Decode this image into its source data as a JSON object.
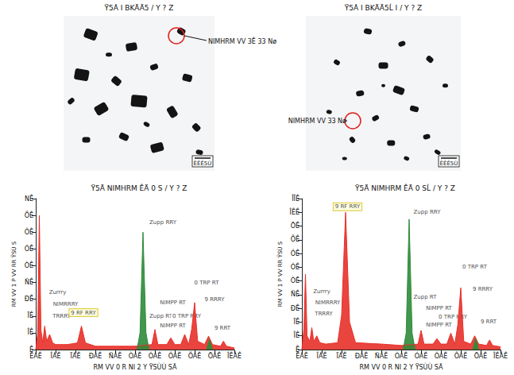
{
  "micrographs": [
    {
      "title": "Ÿ5Ã I BKÄÄ5 / Y ? Z",
      "annotation": "NIMHRM VV 3Ê 33 Nø",
      "scale_bar": "ÊÊÊ5Ù"
    },
    {
      "title": "Ÿ5Ã I BKÄÄ5Ĺ I / Y ? Z",
      "annotation": "NIMHRM VV 33 Nø",
      "scale_bar": "ÊÊÊ5Ù"
    }
  ],
  "chart_data": [
    {
      "type": "area",
      "title": "Ÿ5Ä NIMHRM ÊÄ 0 S / Y ? Z",
      "xlabel": "RM VV 0 R NI 2 Y ŸSÙÙ SÃ",
      "ylabel": "RM VV 1 P VV RR ŸSÙ S",
      "xlim": [
        0,
        10
      ],
      "xticks": [
        {
          "value": 0,
          "label": "ÊÁÊ"
        },
        {
          "value": 1,
          "label": "ÎÁÊ"
        },
        {
          "value": 2,
          "label": "ÏÁÊ"
        },
        {
          "value": 3,
          "label": "ÐÁÊ"
        },
        {
          "value": 4,
          "label": "ÑÁÊ"
        },
        {
          "value": 5,
          "label": "ÒÁÊ"
        },
        {
          "value": 6,
          "label": "ÓÁÊ"
        },
        {
          "value": 7,
          "label": "ÔÁÊ"
        },
        {
          "value": 8,
          "label": "ÕÁÊ"
        },
        {
          "value": 9,
          "label": "ÖÁÊ"
        },
        {
          "value": 10,
          "label": "ÎÊÁÊ"
        }
      ],
      "ylim": [
        0,
        90
      ],
      "yticks": [
        {
          "value": 0,
          "label": "Ê"
        },
        {
          "value": 10,
          "label": "ÎÊ"
        },
        {
          "value": 20,
          "label": "ÏÊ"
        },
        {
          "value": 30,
          "label": "ÐÊ"
        },
        {
          "value": 40,
          "label": "ÑÊ"
        },
        {
          "value": 50,
          "label": "ÒÊ"
        },
        {
          "value": 60,
          "label": "ÓÊ"
        },
        {
          "value": 70,
          "label": "ÔÊ"
        },
        {
          "value": 80,
          "label": "ÕÊ"
        },
        {
          "value": 90,
          "label": "NÊ"
        }
      ],
      "grid": false,
      "series": [
        {
          "color": "#e8302a",
          "x": [
            0,
            0.1,
            0.18,
            0.26,
            0.35,
            0.45,
            0.55,
            0.7,
            0.85,
            1.0,
            1.6,
            2.1,
            2.3,
            2.5,
            3.0,
            4.0,
            5.0,
            5.85,
            6.0,
            6.15,
            6.6,
            6.8,
            7.0,
            7.3,
            7.5,
            7.7,
            7.85,
            8.0,
            8.15,
            8.5,
            8.7,
            8.9,
            9.3,
            9.45,
            9.6,
            10
          ],
          "values": [
            0,
            10,
            80,
            12,
            4,
            14,
            5,
            9,
            4,
            3,
            3,
            4,
            14,
            4,
            2,
            2,
            2,
            3,
            12,
            3,
            3,
            7,
            3,
            3,
            9,
            3,
            12,
            28,
            5,
            3,
            8,
            3,
            2,
            5,
            2,
            1
          ]
        },
        {
          "color": "#2e8b3a",
          "x": [
            5.1,
            5.25,
            5.4,
            5.55,
            5.7,
            6.0,
            8.6,
            8.75,
            8.9
          ],
          "values": [
            0,
            10,
            70,
            10,
            0,
            null,
            0,
            6,
            0
          ]
        }
      ],
      "annotations": [
        {
          "text": "Zupp RRY",
          "x": 6.4,
          "y": 76
        },
        {
          "text": "Zurrry",
          "x": 1.1,
          "y": 34
        },
        {
          "text": "NIMRRRY",
          "x": 1.5,
          "y": 27
        },
        {
          "text": "TRRRY",
          "x": 1.3,
          "y": 20
        },
        {
          "text": "9 RF RRY",
          "x": 2.4,
          "y": 22,
          "marker": "box"
        },
        {
          "text": "Zupp RT",
          "x": 6.3,
          "y": 20
        },
        {
          "text": "NIMPP RT",
          "x": 6.9,
          "y": 28
        },
        {
          "text": "NIMPP RT",
          "x": 6.9,
          "y": 14
        },
        {
          "text": "0 TRP RT",
          "x": 8.6,
          "y": 40
        },
        {
          "text": "0 TRP RRY",
          "x": 7.6,
          "y": 20
        },
        {
          "text": "9 RRRY",
          "x": 9.0,
          "y": 30
        },
        {
          "text": "9 RRT",
          "x": 9.4,
          "y": 13
        }
      ]
    },
    {
      "type": "area",
      "title": "Ÿ5Ä NIMHRM ÊÄ 0 SĹ / Y ? Z",
      "xlabel": "RM VV 0 R NI 2 Y ŸSÙÙ SÃ",
      "ylabel": "RM VV 1 P VV RR ŸSÙ S",
      "xlim": [
        0,
        10
      ],
      "xticks": [
        {
          "value": 0,
          "label": "ÊÁÊ"
        },
        {
          "value": 1,
          "label": "ÎÁÊ"
        },
        {
          "value": 2,
          "label": "ÏÁÊ"
        },
        {
          "value": 3,
          "label": "ÐÁÊ"
        },
        {
          "value": 4,
          "label": "ÑÁÊ"
        },
        {
          "value": 5,
          "label": "ÒÁÊ"
        },
        {
          "value": 6,
          "label": "ÓÁÊ"
        },
        {
          "value": 7,
          "label": "ÔÁÊ"
        },
        {
          "value": 8,
          "label": "ÕÁÊ"
        },
        {
          "value": 9,
          "label": "ÖÁÊ"
        },
        {
          "value": 10,
          "label": "ÎÊÁÊ"
        }
      ],
      "ylim": [
        0,
        110
      ],
      "yticks": [
        {
          "value": 0,
          "label": "Ê"
        },
        {
          "value": 10,
          "label": "ÎÊ"
        },
        {
          "value": 20,
          "label": "ÏÊ"
        },
        {
          "value": 30,
          "label": "ÐÊ"
        },
        {
          "value": 40,
          "label": "ÑÊ"
        },
        {
          "value": 50,
          "label": "ÒÊ"
        },
        {
          "value": 60,
          "label": "ÓÊ"
        },
        {
          "value": 70,
          "label": "ÔÊ"
        },
        {
          "value": 80,
          "label": "ÕÊ"
        },
        {
          "value": 90,
          "label": "ÖÊ"
        },
        {
          "value": 100,
          "label": "ÎÊÊ"
        },
        {
          "value": 110,
          "label": "ÎÎÊ"
        }
      ],
      "grid": false,
      "series": [
        {
          "color": "#e8302a",
          "x": [
            0,
            0.1,
            0.18,
            0.26,
            0.4,
            0.5,
            0.6,
            0.75,
            0.9,
            1.2,
            1.8,
            2.0,
            2.2,
            2.4,
            2.7,
            4.0,
            5.0,
            5.85,
            6.0,
            6.15,
            6.6,
            6.8,
            7.0,
            7.3,
            7.5,
            7.7,
            7.85,
            8.0,
            8.15,
            8.5,
            8.7,
            8.9,
            9.3,
            9.45,
            9.6,
            10
          ],
          "values": [
            0,
            15,
            55,
            10,
            6,
            16,
            6,
            10,
            5,
            4,
            5,
            25,
            100,
            20,
            5,
            4,
            3,
            4,
            14,
            4,
            4,
            8,
            4,
            4,
            12,
            4,
            18,
            45,
            6,
            4,
            10,
            4,
            3,
            7,
            3,
            2
          ]
        },
        {
          "color": "#2e8b3a",
          "x": [
            5.1,
            5.25,
            5.4,
            5.55,
            5.7,
            6.0,
            8.6,
            8.75,
            8.9
          ],
          "values": [
            0,
            12,
            95,
            12,
            0,
            null,
            0,
            8,
            0
          ]
        }
      ],
      "annotations": [
        {
          "text": "9 RF RRY",
          "x": 2.3,
          "y": 104,
          "marker": "box"
        },
        {
          "text": "Zupp RRY",
          "x": 6.3,
          "y": 100
        },
        {
          "text": "Zurrry",
          "x": 1.0,
          "y": 42
        },
        {
          "text": "NIMRRRY",
          "x": 1.3,
          "y": 34
        },
        {
          "text": "TRRRY",
          "x": 1.1,
          "y": 26
        },
        {
          "text": "Zupp RT",
          "x": 6.2,
          "y": 38
        },
        {
          "text": "NIMPP RT",
          "x": 6.9,
          "y": 30
        },
        {
          "text": "NIMPP RT",
          "x": 6.9,
          "y": 18
        },
        {
          "text": "0 TRP RT",
          "x": 8.7,
          "y": 60
        },
        {
          "text": "0 TRP RRY",
          "x": 7.6,
          "y": 24
        },
        {
          "text": "9 RRRY",
          "x": 9.1,
          "y": 44
        },
        {
          "text": "9 RRT",
          "x": 9.4,
          "y": 20
        }
      ]
    }
  ]
}
